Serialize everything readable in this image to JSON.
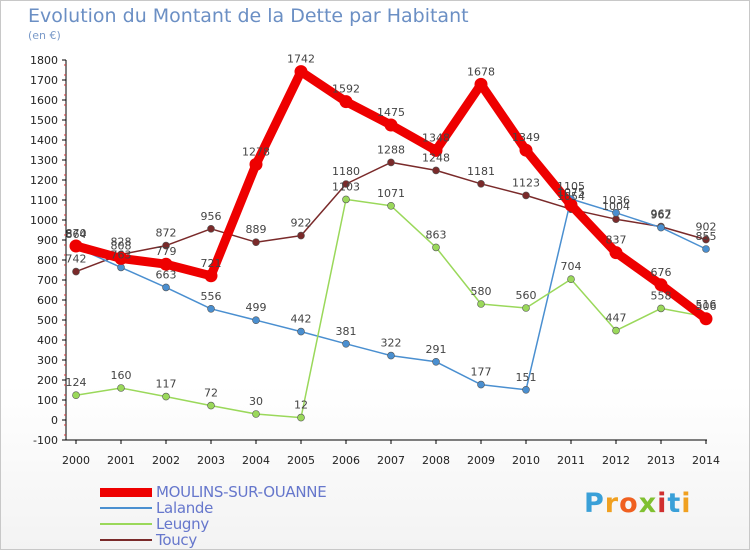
{
  "title": "Evolution du Montant de la Dette par Habitant",
  "unit": "(en €)",
  "logo": {
    "letters": [
      "P",
      "r",
      "o",
      "x",
      "i",
      "t",
      "i"
    ],
    "colors": [
      "#3aa0d8",
      "#f0a020",
      "#f06020",
      "#80c030",
      "#d03030",
      "#3aa0d8",
      "#f0a020"
    ]
  },
  "chart_data": {
    "type": "line",
    "title": "Evolution du Montant de la Dette par Habitant",
    "ylabel": "(en €)",
    "ylim": [
      -100,
      1800
    ],
    "yticks": [
      -100,
      0,
      100,
      200,
      300,
      400,
      500,
      600,
      700,
      800,
      900,
      1000,
      1100,
      1200,
      1300,
      1400,
      1500,
      1600,
      1700,
      1800
    ],
    "x": [
      "2000",
      "2001",
      "2002",
      "2003",
      "2004",
      "2005",
      "2006",
      "2007",
      "2008",
      "2009",
      "2010",
      "2011",
      "2012",
      "2013",
      "2014"
    ],
    "grid": false,
    "legend_position": "bottom-left",
    "series": [
      {
        "name": "Toucy",
        "color": "#7a2a2a",
        "values": [
          742,
          828,
          872,
          956,
          889,
          922,
          1180,
          1288,
          1248,
          1181,
          1123,
          1054,
          1004,
          967,
          902
        ]
      },
      {
        "name": "Lalande",
        "color": "#4a8fd0",
        "values": [
          864,
          763,
          663,
          556,
          499,
          442,
          381,
          322,
          291,
          177,
          151,
          1105,
          1036,
          962,
          855
        ]
      },
      {
        "name": "Leugny",
        "color": "#9ad85a",
        "values": [
          124,
          160,
          117,
          72,
          30,
          12,
          1103,
          1071,
          863,
          580,
          560,
          704,
          447,
          558,
          516
        ]
      },
      {
        "name": "MOULINS-SUR-OUANNE",
        "color": "#ee0000",
        "values": [
          870,
          808,
          779,
          721,
          1278,
          1742,
          1592,
          1475,
          1348,
          1678,
          1349,
          1075,
          837,
          676,
          506
        ]
      }
    ]
  }
}
